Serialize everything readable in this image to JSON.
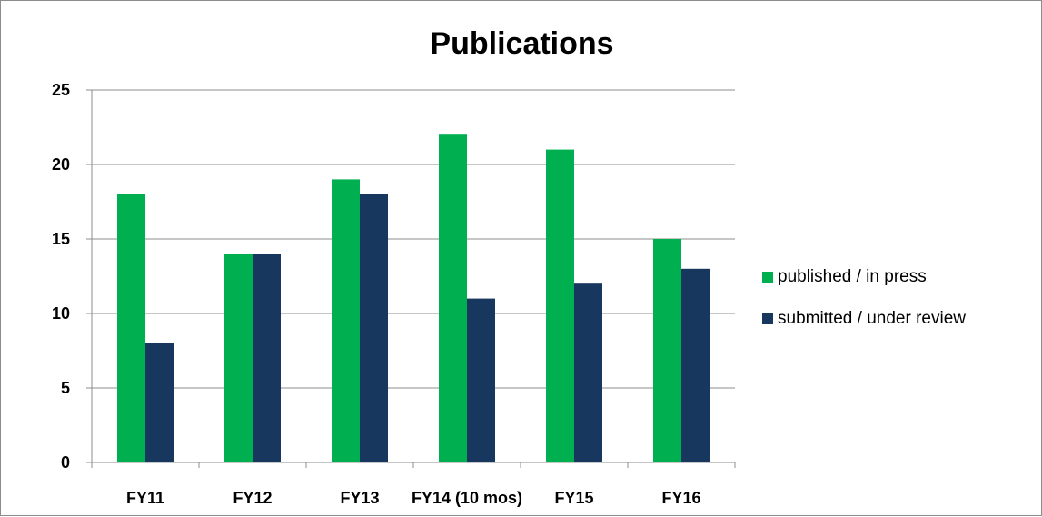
{
  "chart_data": {
    "type": "bar",
    "title": "Publications",
    "xlabel": "",
    "ylabel": "",
    "categories": [
      "FY11",
      "FY12",
      "FY13",
      "FY14 (10 mos)",
      "FY15",
      "FY16"
    ],
    "series": [
      {
        "name": "published / in press",
        "color": "#00b050",
        "values": [
          18,
          14,
          19,
          22,
          21,
          15
        ]
      },
      {
        "name": "submitted / under review",
        "color": "#17375e",
        "values": [
          8,
          14,
          18,
          11,
          12,
          13
        ]
      }
    ],
    "ylim": [
      0,
      25
    ],
    "yticks": [
      0,
      5,
      10,
      15,
      20,
      25
    ],
    "grid": true,
    "legend_position": "right"
  }
}
